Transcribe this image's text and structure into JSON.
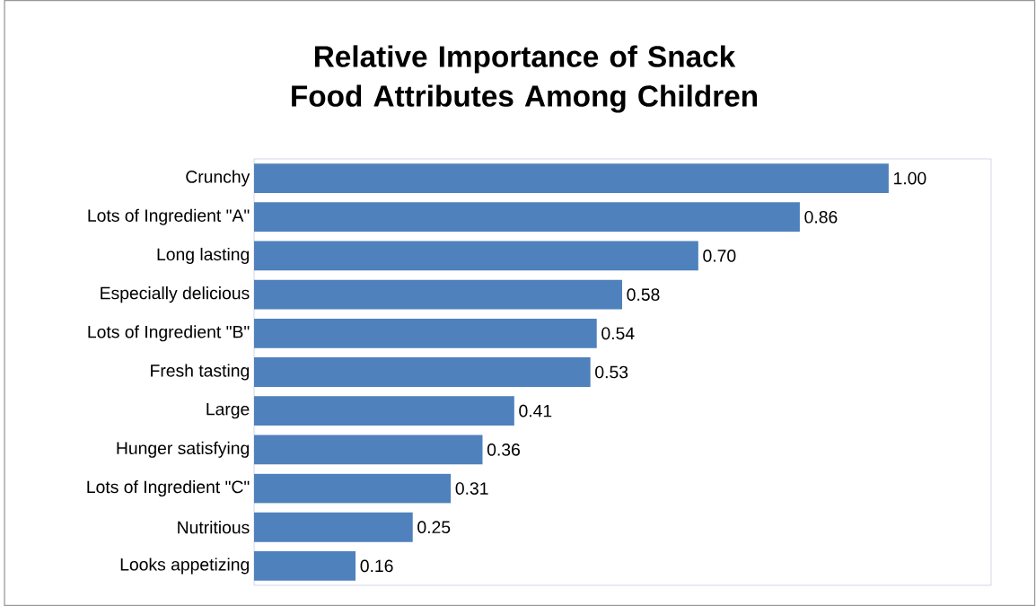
{
  "chart_data": {
    "type": "bar",
    "orientation": "horizontal",
    "title": "Relative Importance of Snack Food Attributes Among Children",
    "categories": [
      "Crunchy",
      "Lots of Ingredient \"A\"",
      "Long lasting",
      "Especially delicious",
      "Lots of Ingredient \"B\"",
      "Fresh tasting",
      "Large",
      "Hunger satisfying",
      "Lots of Ingredient \"C\"",
      "Nutritious",
      "Looks appetizing"
    ],
    "values": [
      1.0,
      0.86,
      0.7,
      0.58,
      0.54,
      0.53,
      0.41,
      0.36,
      0.31,
      0.25,
      0.16
    ],
    "value_labels": [
      "1.00",
      "0.86",
      "0.70",
      "0.58",
      "0.54",
      "0.53",
      "0.41",
      "0.36",
      "0.31",
      "0.25",
      "0.16"
    ],
    "color": "#4f81bd"
  }
}
